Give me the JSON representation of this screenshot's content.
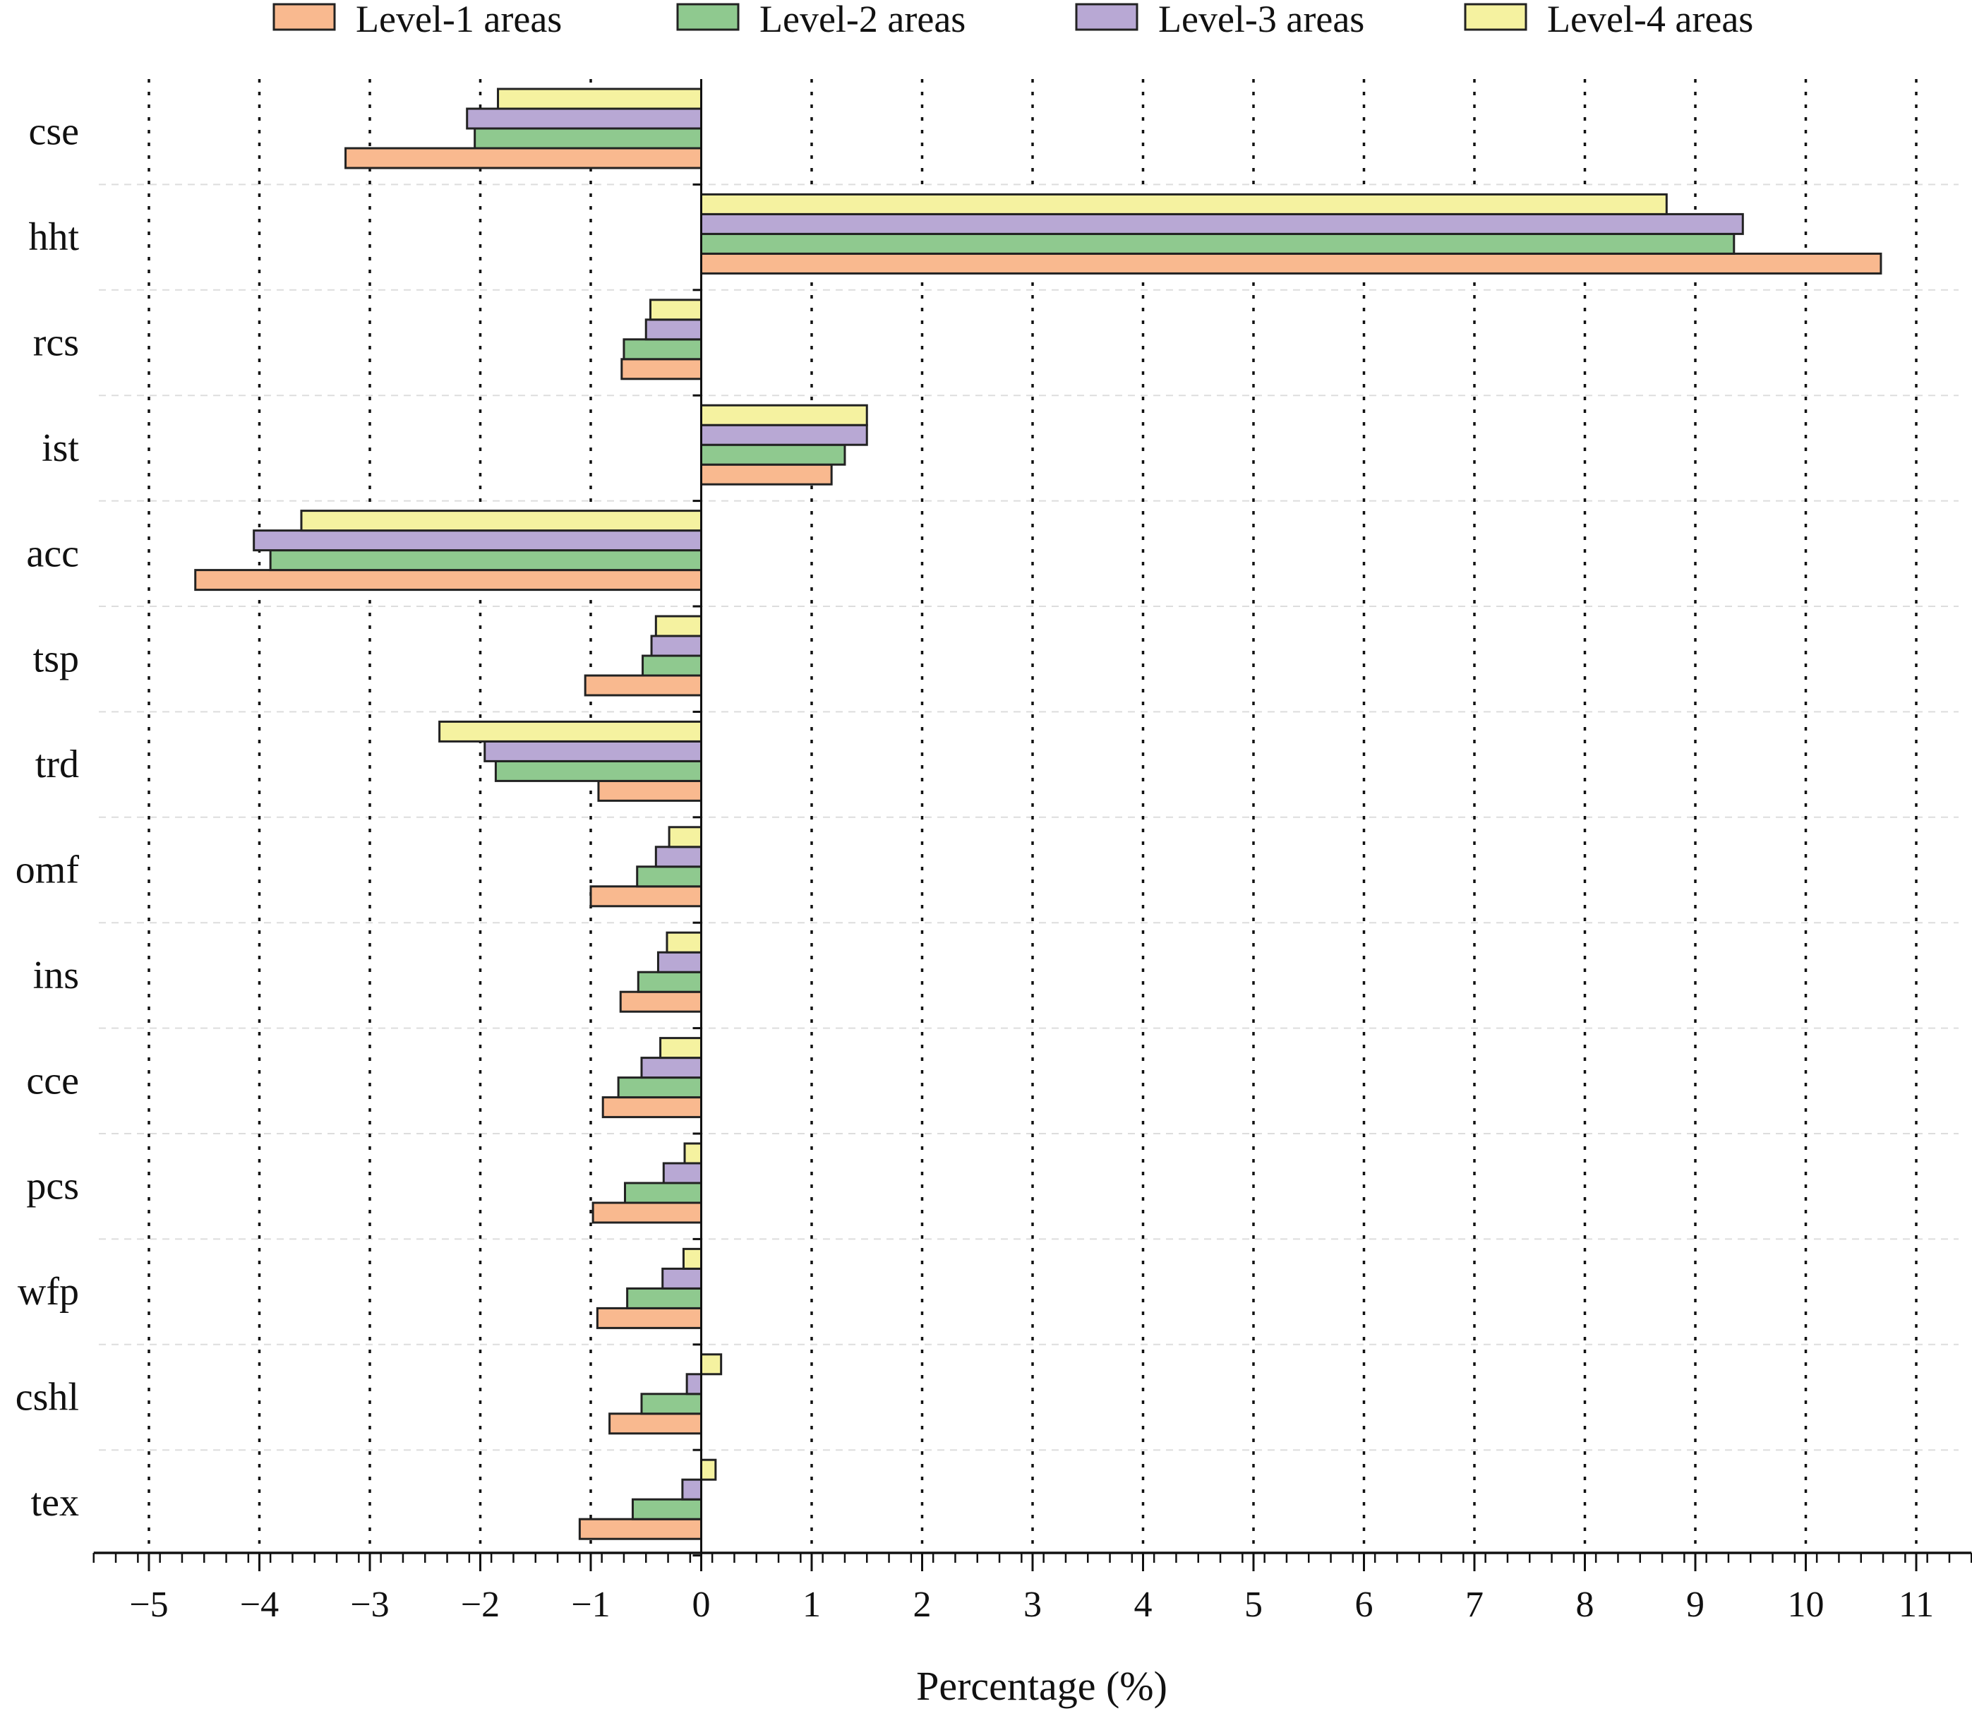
{
  "chart_data": {
    "type": "bar",
    "orientation": "horizontal",
    "categories": [
      "cse",
      "hht",
      "rcs",
      "ist",
      "acc",
      "tsp",
      "trd",
      "omf",
      "ins",
      "cce",
      "pcs",
      "wfp",
      "cshl",
      "tex"
    ],
    "series": [
      {
        "name": "Level-1 areas",
        "color": "#f9b98f",
        "values": [
          -3.22,
          10.68,
          -0.72,
          1.18,
          -4.58,
          -1.05,
          -0.93,
          -1.0,
          -0.73,
          -0.89,
          -0.98,
          -0.94,
          -0.83,
          -1.1
        ]
      },
      {
        "name": "Level-2 areas",
        "color": "#8fc98f",
        "values": [
          -2.05,
          9.35,
          -0.7,
          1.3,
          -3.9,
          -0.53,
          -1.86,
          -0.58,
          -0.57,
          -0.75,
          -0.69,
          -0.67,
          -0.54,
          -0.62
        ]
      },
      {
        "name": "Level-3 areas",
        "color": "#b8a8d4",
        "values": [
          -2.12,
          9.43,
          -0.5,
          1.5,
          -4.05,
          -0.45,
          -1.96,
          -0.41,
          -0.39,
          -0.54,
          -0.34,
          -0.35,
          -0.13,
          -0.17
        ]
      },
      {
        "name": "Level-4 areas",
        "color": "#f5f2a0",
        "values": [
          -1.84,
          8.74,
          -0.46,
          1.5,
          -3.62,
          -0.41,
          -2.37,
          -0.29,
          -0.31,
          -0.37,
          -0.15,
          -0.16,
          0.18,
          0.13
        ]
      }
    ],
    "xlabel": "Percentage (%)",
    "ylabel": "",
    "title": "",
    "xlim": [
      -5.5,
      11.5
    ],
    "xticks": [
      -5,
      -4,
      -3,
      -2,
      -1,
      0,
      1,
      2,
      3,
      4,
      5,
      6,
      7,
      8,
      9,
      10,
      11
    ],
    "xtick_labels": [
      "−5",
      "−4",
      "−3",
      "−2",
      "−1",
      "0",
      "1",
      "2",
      "3",
      "4",
      "5",
      "6",
      "7",
      "8",
      "9",
      "10",
      "11"
    ],
    "grid": "vertical dotted at major ticks",
    "legend_position": "top, above plot"
  }
}
